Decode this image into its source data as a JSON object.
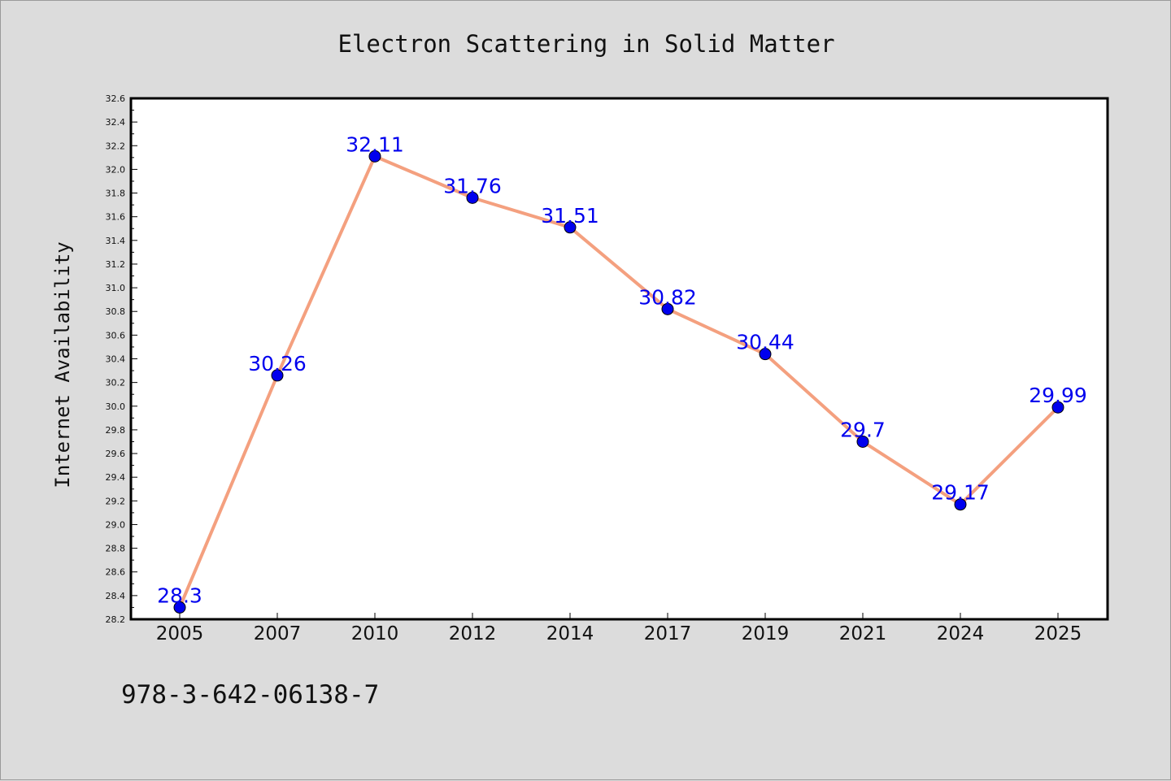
{
  "chart_data": {
    "type": "line",
    "title": "Electron Scattering in Solid Matter",
    "xlabel": "",
    "ylabel": "Internet Availability",
    "categories": [
      "2005",
      "2007",
      "2010",
      "2012",
      "2014",
      "2017",
      "2019",
      "2021",
      "2024",
      "2025"
    ],
    "series": [
      {
        "values": [
          28.3,
          30.26,
          32.11,
          31.76,
          31.51,
          30.82,
          30.44,
          29.7,
          29.17,
          29.99
        ],
        "labels": [
          "28.3",
          "30.26",
          "32.11",
          "31.76",
          "31.51",
          "30.82",
          "30.44",
          "29.7",
          "29.17",
          "29.99"
        ],
        "line_color": "#f4a07f",
        "marker_color": "#0000ee"
      }
    ],
    "ylim": [
      28.2,
      32.6
    ],
    "yticks": [
      "28.2",
      "28.4",
      "28.6",
      "28.8",
      "29.0",
      "29.2",
      "29.4",
      "29.6",
      "29.8",
      "30.0",
      "30.2",
      "30.4",
      "30.6",
      "30.8",
      "31.0",
      "31.2",
      "31.4",
      "31.6",
      "31.8",
      "32.0",
      "32.2",
      "32.4",
      "32.6"
    ],
    "grid": false,
    "legend": "none",
    "footer": "978-3-642-06138-7"
  }
}
